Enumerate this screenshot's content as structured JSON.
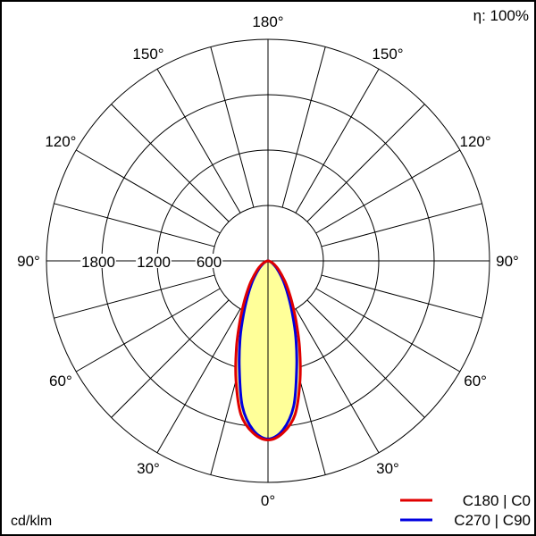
{
  "chart_data": {
    "type": "polar",
    "efficiency_label": "η: 100%",
    "unit_label": "cd/klm",
    "radial_ticks": [
      600,
      1200,
      1800
    ],
    "radial_tick_labels": [
      "600",
      "1200",
      "1800"
    ],
    "r_max": 2400,
    "angle_labels": [
      "0°",
      "30°",
      "60°",
      "90°",
      "120°",
      "150°",
      "180°"
    ],
    "angle_label_values": [
      0,
      30,
      60,
      90,
      120,
      150,
      180
    ],
    "fill_color": "#ffff99",
    "series": [
      {
        "name": "C180 | C0",
        "color": "#e00000",
        "angles": [
          0,
          5,
          10,
          15,
          20,
          25,
          30,
          35,
          40,
          50,
          60,
          70,
          80,
          90
        ],
        "values": [
          1940,
          1870,
          1690,
          1340,
          1000,
          720,
          520,
          380,
          280,
          150,
          80,
          35,
          10,
          0
        ]
      },
      {
        "name": "C270 | C90",
        "color": "#0000e0",
        "angles": [
          0,
          5,
          10,
          15,
          20,
          25,
          30,
          35,
          40,
          50,
          60,
          70,
          80,
          90
        ],
        "values": [
          1930,
          1840,
          1600,
          1200,
          880,
          620,
          440,
          320,
          230,
          120,
          60,
          25,
          8,
          0
        ]
      }
    ]
  }
}
